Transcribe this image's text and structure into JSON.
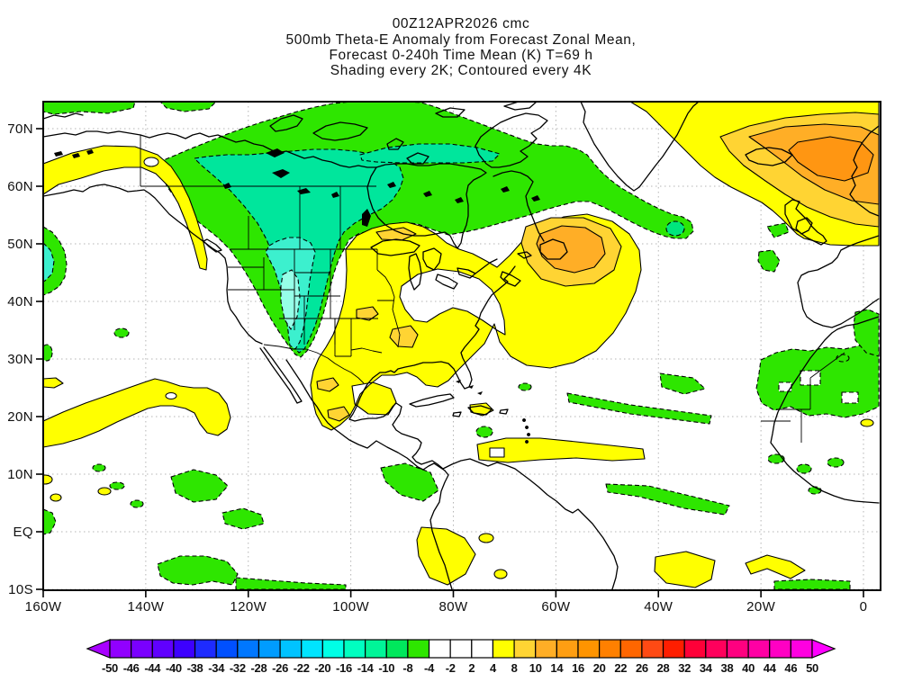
{
  "title": {
    "line1": "00Z12APR2026 cmc",
    "line2": "500mb Theta-E Anomaly from Forecast Zonal Mean,",
    "line3": "Forecast 0-240h Time Mean (K) T=69 h",
    "line4": "Shading every 2K; Contoured every 4K"
  },
  "axes": {
    "lat_labels": [
      "70N",
      "60N",
      "50N",
      "40N",
      "30N",
      "20N",
      "10N",
      "EQ",
      "10S"
    ],
    "lon_labels": [
      "160W",
      "140W",
      "120W",
      "100W",
      "80W",
      "60W",
      "40W",
      "20W",
      "0"
    ]
  },
  "colorbar": {
    "levels": [
      "-50",
      "-46",
      "-44",
      "-40",
      "-38",
      "-34",
      "-32",
      "-28",
      "-26",
      "-22",
      "-20",
      "-16",
      "-14",
      "-10",
      "-8",
      "-4",
      "-2",
      "2",
      "4",
      "8",
      "10",
      "14",
      "16",
      "20",
      "22",
      "26",
      "28",
      "32",
      "34",
      "38",
      "40",
      "44",
      "46",
      "50"
    ],
    "colors": [
      "#A800FF",
      "#9100FF",
      "#7A00FF",
      "#6000FF",
      "#3D00FF",
      "#1E2BFF",
      "#0050FF",
      "#0077FF",
      "#009CFF",
      "#00C3FF",
      "#00E4FF",
      "#00FFE6",
      "#00FFC0",
      "#00F598",
      "#00E85C",
      "#2EE600",
      "#FFFFFF",
      "#FFFFFF",
      "#FFFFFF",
      "#FFFF00",
      "#FFD433",
      "#FFAE26",
      "#FF9E12",
      "#FF9400",
      "#FF8000",
      "#FF6600",
      "#FF4A14",
      "#FF1E00",
      "#FF0038",
      "#FF005C",
      "#FF0080",
      "#FF00A4",
      "#FF00C3",
      "#FF00E0",
      "#FF00FF"
    ]
  },
  "map_shade_colors": {
    "yellow": "#FFFF00",
    "gold": "#FFD433",
    "orange": "#FFAE26",
    "deep_orange": "#FF9612",
    "green": "#2EE600",
    "dark_green": "#00E67D",
    "teal": "#00E69C",
    "cyan": "#3CF0CE",
    "light_cyan": "#96FFE8"
  },
  "chart_data": {
    "type": "heatmap",
    "subtype": "filled-contour-weather-map",
    "model": "cmc",
    "init_time": "00Z12APR2026",
    "field": "500mb Theta-E Anomaly from Forecast Zonal Mean",
    "statistic": "Forecast 0-240h Time Mean",
    "units": "K",
    "time_label": "T=69 h",
    "shading_interval_K": 2,
    "contour_interval_K": 4,
    "lat_ticks": [
      "70N",
      "60N",
      "50N",
      "40N",
      "30N",
      "20N",
      "10N",
      "EQ",
      "10S"
    ],
    "lon_ticks": [
      "160W",
      "140W",
      "120W",
      "100W",
      "80W",
      "60W",
      "40W",
      "20W",
      "0"
    ],
    "lat_range_shown": [
      "10S",
      "~75N"
    ],
    "lon_range_shown": [
      "160W",
      "~3E"
    ],
    "grid": "dotted 10-degree latitude / 20-degree longitude graticule",
    "colorbar_levels": [
      -50,
      -46,
      -44,
      -40,
      -38,
      -34,
      -32,
      -28,
      -26,
      -22,
      -20,
      -16,
      -14,
      -10,
      -8,
      -4,
      -2,
      2,
      4,
      8,
      10,
      14,
      16,
      20,
      22,
      26,
      28,
      32,
      34,
      38,
      40,
      44,
      46,
      50
    ],
    "contour_style": {
      "negative": "dashed black",
      "positive": "solid black"
    },
    "anomaly_regions": [
      {
        "area": "Western Canada and northern US Rockies lobe",
        "sign": "negative",
        "peak_K": -14
      },
      {
        "area": "Canadian Arctic / Baffin / north of Hudson Bay band",
        "sign": "negative",
        "peak_K": -10
      },
      {
        "area": "Band from Labrador Sea SE into mid-Atlantic (~38W 52N)",
        "sign": "negative",
        "peak_K": -8
      },
      {
        "area": "Far west edge of map near 160W 45-50N",
        "sign": "negative",
        "peak_K": -12
      },
      {
        "area": "Gulf of Alaska arc 160W-128W",
        "sign": "positive",
        "peak_K": 6
      },
      {
        "area": "Subtropical NE Pacific band ~20-25N",
        "sign": "positive",
        "peak_K": 6
      },
      {
        "area": "Central/eastern US, Great Lakes, Gulf of Mexico, Mexico",
        "sign": "positive",
        "peak_K": 10
      },
      {
        "area": "NW Atlantic blob off Nova Scotia / Newfoundland",
        "sign": "positive",
        "peak_K": 12
      },
      {
        "area": "Iceland - Scandinavia / NE Atlantic",
        "sign": "positive",
        "peak_K": 16
      },
      {
        "area": "Subtropical Atlantic green bands 17-28N",
        "sign": "negative",
        "peak_K": -6
      },
      {
        "area": "Sahara / NW Africa",
        "sign": "negative",
        "peak_K": -6
      },
      {
        "area": "Caribbean / tropical Atlantic yellow band ~13N",
        "sign": "positive",
        "peak_K": 6
      },
      {
        "area": "Eastern tropical Pacific scattered blobs 0-10N",
        "sign": "negative",
        "peak_K": -6
      },
      {
        "area": "Equatorial South America / tropical Atlantic patches",
        "sign": "positive",
        "peak_K": 6
      }
    ]
  }
}
